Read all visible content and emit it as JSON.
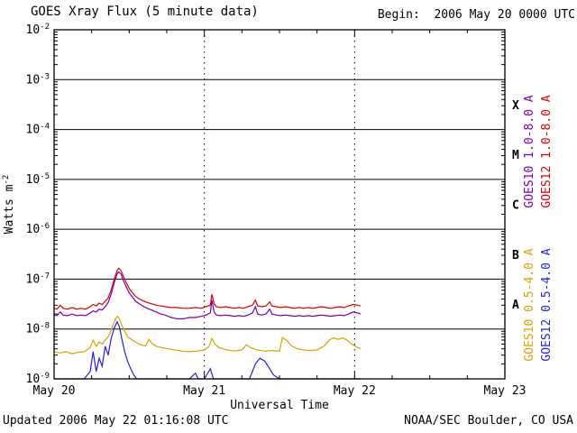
{
  "header": {
    "title": "GOES Xray Flux (5 minute data)",
    "begin_label": "Begin:  2006 May 20 0000 UTC"
  },
  "footer": {
    "updated": "Updated 2006 May 22 01:16:08 UTC",
    "credit": "NOAA/SEC Boulder, CO USA"
  },
  "chart_data": {
    "type": "line",
    "title": "GOES Xray Flux (5 minute data)",
    "xlabel": "Universal Time",
    "ylabel_base": "Watts m",
    "ylabel_exp": "-2",
    "x_range_days": [
      0,
      3
    ],
    "x_tick_labels": [
      "May 20",
      "May 21",
      "May 22",
      "May 23"
    ],
    "x_minor_tick_days": 0.25,
    "y_log_range": [
      -9,
      -2
    ],
    "y_tick_exponents": [
      -2,
      -3,
      -4,
      -5,
      -6,
      -7,
      -8,
      -9
    ],
    "grid": true,
    "legend_position": "right-rotated",
    "flare_class_labels": [
      {
        "label": "X",
        "log_mid": -3.5
      },
      {
        "label": "M",
        "log_mid": -4.5
      },
      {
        "label": "C",
        "log_mid": -5.5
      },
      {
        "label": "B",
        "log_mid": -6.5
      },
      {
        "label": "A",
        "log_mid": -7.5
      }
    ],
    "series": [
      {
        "name": "GOES10 1.0-8.0 A",
        "color": "#7700bb",
        "points": [
          [
            0.0,
            1.9e-08
          ],
          [
            0.02,
            1.85e-08
          ],
          [
            0.04,
            2.2e-08
          ],
          [
            0.06,
            1.9e-08
          ],
          [
            0.09,
            1.85e-08
          ],
          [
            0.12,
            2e-08
          ],
          [
            0.15,
            1.85e-08
          ],
          [
            0.18,
            1.9e-08
          ],
          [
            0.21,
            1.85e-08
          ],
          [
            0.24,
            2.1e-08
          ],
          [
            0.26,
            2.3e-08
          ],
          [
            0.28,
            2.2e-08
          ],
          [
            0.3,
            2.5e-08
          ],
          [
            0.32,
            2.4e-08
          ],
          [
            0.34,
            2.8e-08
          ],
          [
            0.36,
            3.4e-08
          ],
          [
            0.38,
            5e-08
          ],
          [
            0.4,
            8.5e-08
          ],
          [
            0.42,
            1.28e-07
          ],
          [
            0.43,
            1.4e-07
          ],
          [
            0.445,
            1.27e-07
          ],
          [
            0.46,
            9.5e-08
          ],
          [
            0.48,
            7e-08
          ],
          [
            0.5,
            5.3e-08
          ],
          [
            0.52,
            4.4e-08
          ],
          [
            0.54,
            3.7e-08
          ],
          [
            0.56,
            3.3e-08
          ],
          [
            0.59,
            2.9e-08
          ],
          [
            0.62,
            2.6e-08
          ],
          [
            0.65,
            2.4e-08
          ],
          [
            0.68,
            2.2e-08
          ],
          [
            0.71,
            2e-08
          ],
          [
            0.74,
            1.9e-08
          ],
          [
            0.78,
            1.7e-08
          ],
          [
            0.82,
            1.6e-08
          ],
          [
            0.86,
            1.6e-08
          ],
          [
            0.9,
            1.7e-08
          ],
          [
            0.94,
            1.7e-08
          ],
          [
            0.98,
            1.8e-08
          ],
          [
            1.01,
            1.9e-08
          ],
          [
            1.04,
            2.1e-08
          ],
          [
            1.05,
            3.8e-08
          ],
          [
            1.065,
            2.2e-08
          ],
          [
            1.08,
            1.9e-08
          ],
          [
            1.11,
            1.85e-08
          ],
          [
            1.14,
            1.9e-08
          ],
          [
            1.17,
            1.85e-08
          ],
          [
            1.2,
            1.8e-08
          ],
          [
            1.23,
            1.85e-08
          ],
          [
            1.26,
            1.8e-08
          ],
          [
            1.29,
            1.9e-08
          ],
          [
            1.32,
            2.1e-08
          ],
          [
            1.34,
            2.8e-08
          ],
          [
            1.355,
            2e-08
          ],
          [
            1.38,
            1.9e-08
          ],
          [
            1.41,
            2e-08
          ],
          [
            1.435,
            2.5e-08
          ],
          [
            1.45,
            2e-08
          ],
          [
            1.48,
            1.9e-08
          ],
          [
            1.51,
            1.85e-08
          ],
          [
            1.54,
            1.9e-08
          ],
          [
            1.57,
            1.85e-08
          ],
          [
            1.6,
            1.8e-08
          ],
          [
            1.63,
            1.85e-08
          ],
          [
            1.66,
            1.8e-08
          ],
          [
            1.69,
            1.85e-08
          ],
          [
            1.72,
            1.8e-08
          ],
          [
            1.75,
            1.85e-08
          ],
          [
            1.78,
            1.9e-08
          ],
          [
            1.81,
            1.85e-08
          ],
          [
            1.84,
            1.8e-08
          ],
          [
            1.87,
            1.85e-08
          ],
          [
            1.9,
            1.9e-08
          ],
          [
            1.93,
            1.85e-08
          ],
          [
            1.96,
            2e-08
          ],
          [
            1.99,
            2.2e-08
          ],
          [
            2.02,
            2.1e-08
          ],
          [
            2.04,
            2e-08
          ]
        ]
      },
      {
        "name": "GOES12 1.0-8.0 A",
        "color": "#dd0000",
        "points": [
          [
            0.0,
            2.6e-08
          ],
          [
            0.02,
            2.5e-08
          ],
          [
            0.04,
            3e-08
          ],
          [
            0.06,
            2.6e-08
          ],
          [
            0.09,
            2.5e-08
          ],
          [
            0.12,
            2.7e-08
          ],
          [
            0.15,
            2.5e-08
          ],
          [
            0.18,
            2.6e-08
          ],
          [
            0.21,
            2.5e-08
          ],
          [
            0.24,
            2.8e-08
          ],
          [
            0.26,
            3.1e-08
          ],
          [
            0.28,
            2.9e-08
          ],
          [
            0.3,
            3.3e-08
          ],
          [
            0.32,
            3.1e-08
          ],
          [
            0.34,
            3.6e-08
          ],
          [
            0.36,
            4.2e-08
          ],
          [
            0.38,
            6e-08
          ],
          [
            0.4,
            1e-07
          ],
          [
            0.42,
            1.5e-07
          ],
          [
            0.43,
            1.65e-07
          ],
          [
            0.445,
            1.5e-07
          ],
          [
            0.46,
            1.15e-07
          ],
          [
            0.48,
            8.5e-08
          ],
          [
            0.5,
            6.5e-08
          ],
          [
            0.52,
            5.4e-08
          ],
          [
            0.54,
            4.6e-08
          ],
          [
            0.56,
            4.1e-08
          ],
          [
            0.59,
            3.7e-08
          ],
          [
            0.62,
            3.4e-08
          ],
          [
            0.65,
            3.2e-08
          ],
          [
            0.68,
            3e-08
          ],
          [
            0.71,
            2.9e-08
          ],
          [
            0.74,
            2.8e-08
          ],
          [
            0.78,
            2.7e-08
          ],
          [
            0.82,
            2.7e-08
          ],
          [
            0.86,
            2.6e-08
          ],
          [
            0.9,
            2.6e-08
          ],
          [
            0.94,
            2.7e-08
          ],
          [
            0.98,
            2.6e-08
          ],
          [
            1.01,
            2.8e-08
          ],
          [
            1.04,
            3e-08
          ],
          [
            1.05,
            5e-08
          ],
          [
            1.065,
            3.2e-08
          ],
          [
            1.08,
            2.8e-08
          ],
          [
            1.11,
            2.7e-08
          ],
          [
            1.14,
            2.8e-08
          ],
          [
            1.17,
            2.7e-08
          ],
          [
            1.2,
            2.6e-08
          ],
          [
            1.23,
            2.7e-08
          ],
          [
            1.26,
            2.6e-08
          ],
          [
            1.29,
            2.8e-08
          ],
          [
            1.32,
            3e-08
          ],
          [
            1.34,
            3.8e-08
          ],
          [
            1.355,
            2.9e-08
          ],
          [
            1.38,
            2.8e-08
          ],
          [
            1.41,
            2.9e-08
          ],
          [
            1.435,
            3.5e-08
          ],
          [
            1.45,
            2.9e-08
          ],
          [
            1.48,
            2.8e-08
          ],
          [
            1.51,
            2.7e-08
          ],
          [
            1.54,
            2.8e-08
          ],
          [
            1.57,
            2.7e-08
          ],
          [
            1.6,
            2.6e-08
          ],
          [
            1.63,
            2.7e-08
          ],
          [
            1.66,
            2.6e-08
          ],
          [
            1.69,
            2.7e-08
          ],
          [
            1.72,
            2.6e-08
          ],
          [
            1.75,
            2.7e-08
          ],
          [
            1.78,
            2.8e-08
          ],
          [
            1.81,
            2.7e-08
          ],
          [
            1.84,
            2.6e-08
          ],
          [
            1.87,
            2.7e-08
          ],
          [
            1.9,
            2.8e-08
          ],
          [
            1.93,
            2.7e-08
          ],
          [
            1.96,
            2.9e-08
          ],
          [
            1.99,
            3.1e-08
          ],
          [
            2.02,
            3e-08
          ],
          [
            2.04,
            2.9e-08
          ]
        ]
      },
      {
        "name": "GOES10 0.5-4.0 A",
        "color": "#e0a000",
        "points": [
          [
            0.0,
            3.5e-09
          ],
          [
            0.04,
            3.3e-09
          ],
          [
            0.08,
            3.5e-09
          ],
          [
            0.12,
            3.2e-09
          ],
          [
            0.16,
            3.4e-09
          ],
          [
            0.2,
            3.5e-09
          ],
          [
            0.24,
            4.2e-09
          ],
          [
            0.26,
            6e-09
          ],
          [
            0.28,
            4.5e-09
          ],
          [
            0.3,
            5.5e-09
          ],
          [
            0.32,
            5e-09
          ],
          [
            0.34,
            6e-09
          ],
          [
            0.36,
            7e-09
          ],
          [
            0.38,
            9.5e-09
          ],
          [
            0.4,
            1.4e-08
          ],
          [
            0.42,
            1.8e-08
          ],
          [
            0.43,
            1.7e-08
          ],
          [
            0.45,
            1.2e-08
          ],
          [
            0.47,
            9e-09
          ],
          [
            0.49,
            7e-09
          ],
          [
            0.52,
            6e-09
          ],
          [
            0.55,
            5.3e-09
          ],
          [
            0.58,
            4.8e-09
          ],
          [
            0.61,
            4.6e-09
          ],
          [
            0.63,
            6.2e-09
          ],
          [
            0.65,
            5.2e-09
          ],
          [
            0.68,
            4.5e-09
          ],
          [
            0.72,
            4.2e-09
          ],
          [
            0.76,
            4e-09
          ],
          [
            0.8,
            3.8e-09
          ],
          [
            0.85,
            3.6e-09
          ],
          [
            0.9,
            3.5e-09
          ],
          [
            0.95,
            3.6e-09
          ],
          [
            1.0,
            3.8e-09
          ],
          [
            1.03,
            4.4e-09
          ],
          [
            1.05,
            6.5e-09
          ],
          [
            1.07,
            5e-09
          ],
          [
            1.1,
            4.2e-09
          ],
          [
            1.15,
            3.8e-09
          ],
          [
            1.2,
            3.6e-09
          ],
          [
            1.25,
            3.8e-09
          ],
          [
            1.28,
            4.8e-09
          ],
          [
            1.31,
            4.2e-09
          ],
          [
            1.35,
            3.8e-09
          ],
          [
            1.4,
            3.6e-09
          ],
          [
            1.45,
            3.7e-09
          ],
          [
            1.5,
            3.6e-09
          ],
          [
            1.52,
            6.8e-09
          ],
          [
            1.55,
            5.8e-09
          ],
          [
            1.58,
            4.6e-09
          ],
          [
            1.62,
            4e-09
          ],
          [
            1.66,
            3.8e-09
          ],
          [
            1.7,
            3.7e-09
          ],
          [
            1.75,
            3.8e-09
          ],
          [
            1.8,
            4.6e-09
          ],
          [
            1.83,
            6e-09
          ],
          [
            1.86,
            6.6e-09
          ],
          [
            1.89,
            6.2e-09
          ],
          [
            1.92,
            6.6e-09
          ],
          [
            1.95,
            6e-09
          ],
          [
            1.98,
            5e-09
          ],
          [
            2.01,
            4.4e-09
          ],
          [
            2.04,
            4e-09
          ]
        ]
      },
      {
        "name": "GOES12 0.5-4.0 A",
        "color": "#2222dd",
        "points": [
          [
            0.0,
            8e-10
          ],
          [
            0.1,
            8e-10
          ],
          [
            0.2,
            9e-10
          ],
          [
            0.24,
            1.4e-09
          ],
          [
            0.26,
            3.5e-09
          ],
          [
            0.28,
            1.4e-09
          ],
          [
            0.3,
            2.6e-09
          ],
          [
            0.32,
            1.8e-09
          ],
          [
            0.34,
            4.5e-09
          ],
          [
            0.36,
            3e-09
          ],
          [
            0.38,
            6.5e-09
          ],
          [
            0.4,
            1.05e-08
          ],
          [
            0.42,
            1.4e-08
          ],
          [
            0.435,
            1.1e-08
          ],
          [
            0.45,
            6.5e-09
          ],
          [
            0.47,
            3.5e-09
          ],
          [
            0.49,
            2.2e-09
          ],
          [
            0.51,
            1.6e-09
          ],
          [
            0.53,
            1.2e-09
          ],
          [
            0.55,
            1e-09
          ],
          [
            0.6,
            8e-10
          ],
          [
            0.7,
            8e-10
          ],
          [
            0.8,
            8e-10
          ],
          [
            0.9,
            9e-10
          ],
          [
            0.94,
            1.3e-09
          ],
          [
            0.96,
            1e-09
          ],
          [
            1.0,
            9e-10
          ],
          [
            1.04,
            1.6e-09
          ],
          [
            1.06,
            1e-09
          ],
          [
            1.1,
            8e-10
          ],
          [
            1.2,
            8e-10
          ],
          [
            1.3,
            9e-10
          ],
          [
            1.34,
            2e-09
          ],
          [
            1.37,
            2.6e-09
          ],
          [
            1.4,
            2.3e-09
          ],
          [
            1.43,
            1.7e-09
          ],
          [
            1.46,
            1.2e-09
          ],
          [
            1.5,
            9e-10
          ],
          [
            1.6,
            8e-10
          ],
          [
            1.7,
            8e-10
          ],
          [
            1.8,
            8e-10
          ],
          [
            1.9,
            9e-10
          ],
          [
            2.0,
            8e-10
          ],
          [
            2.04,
            8e-10
          ]
        ]
      }
    ]
  }
}
